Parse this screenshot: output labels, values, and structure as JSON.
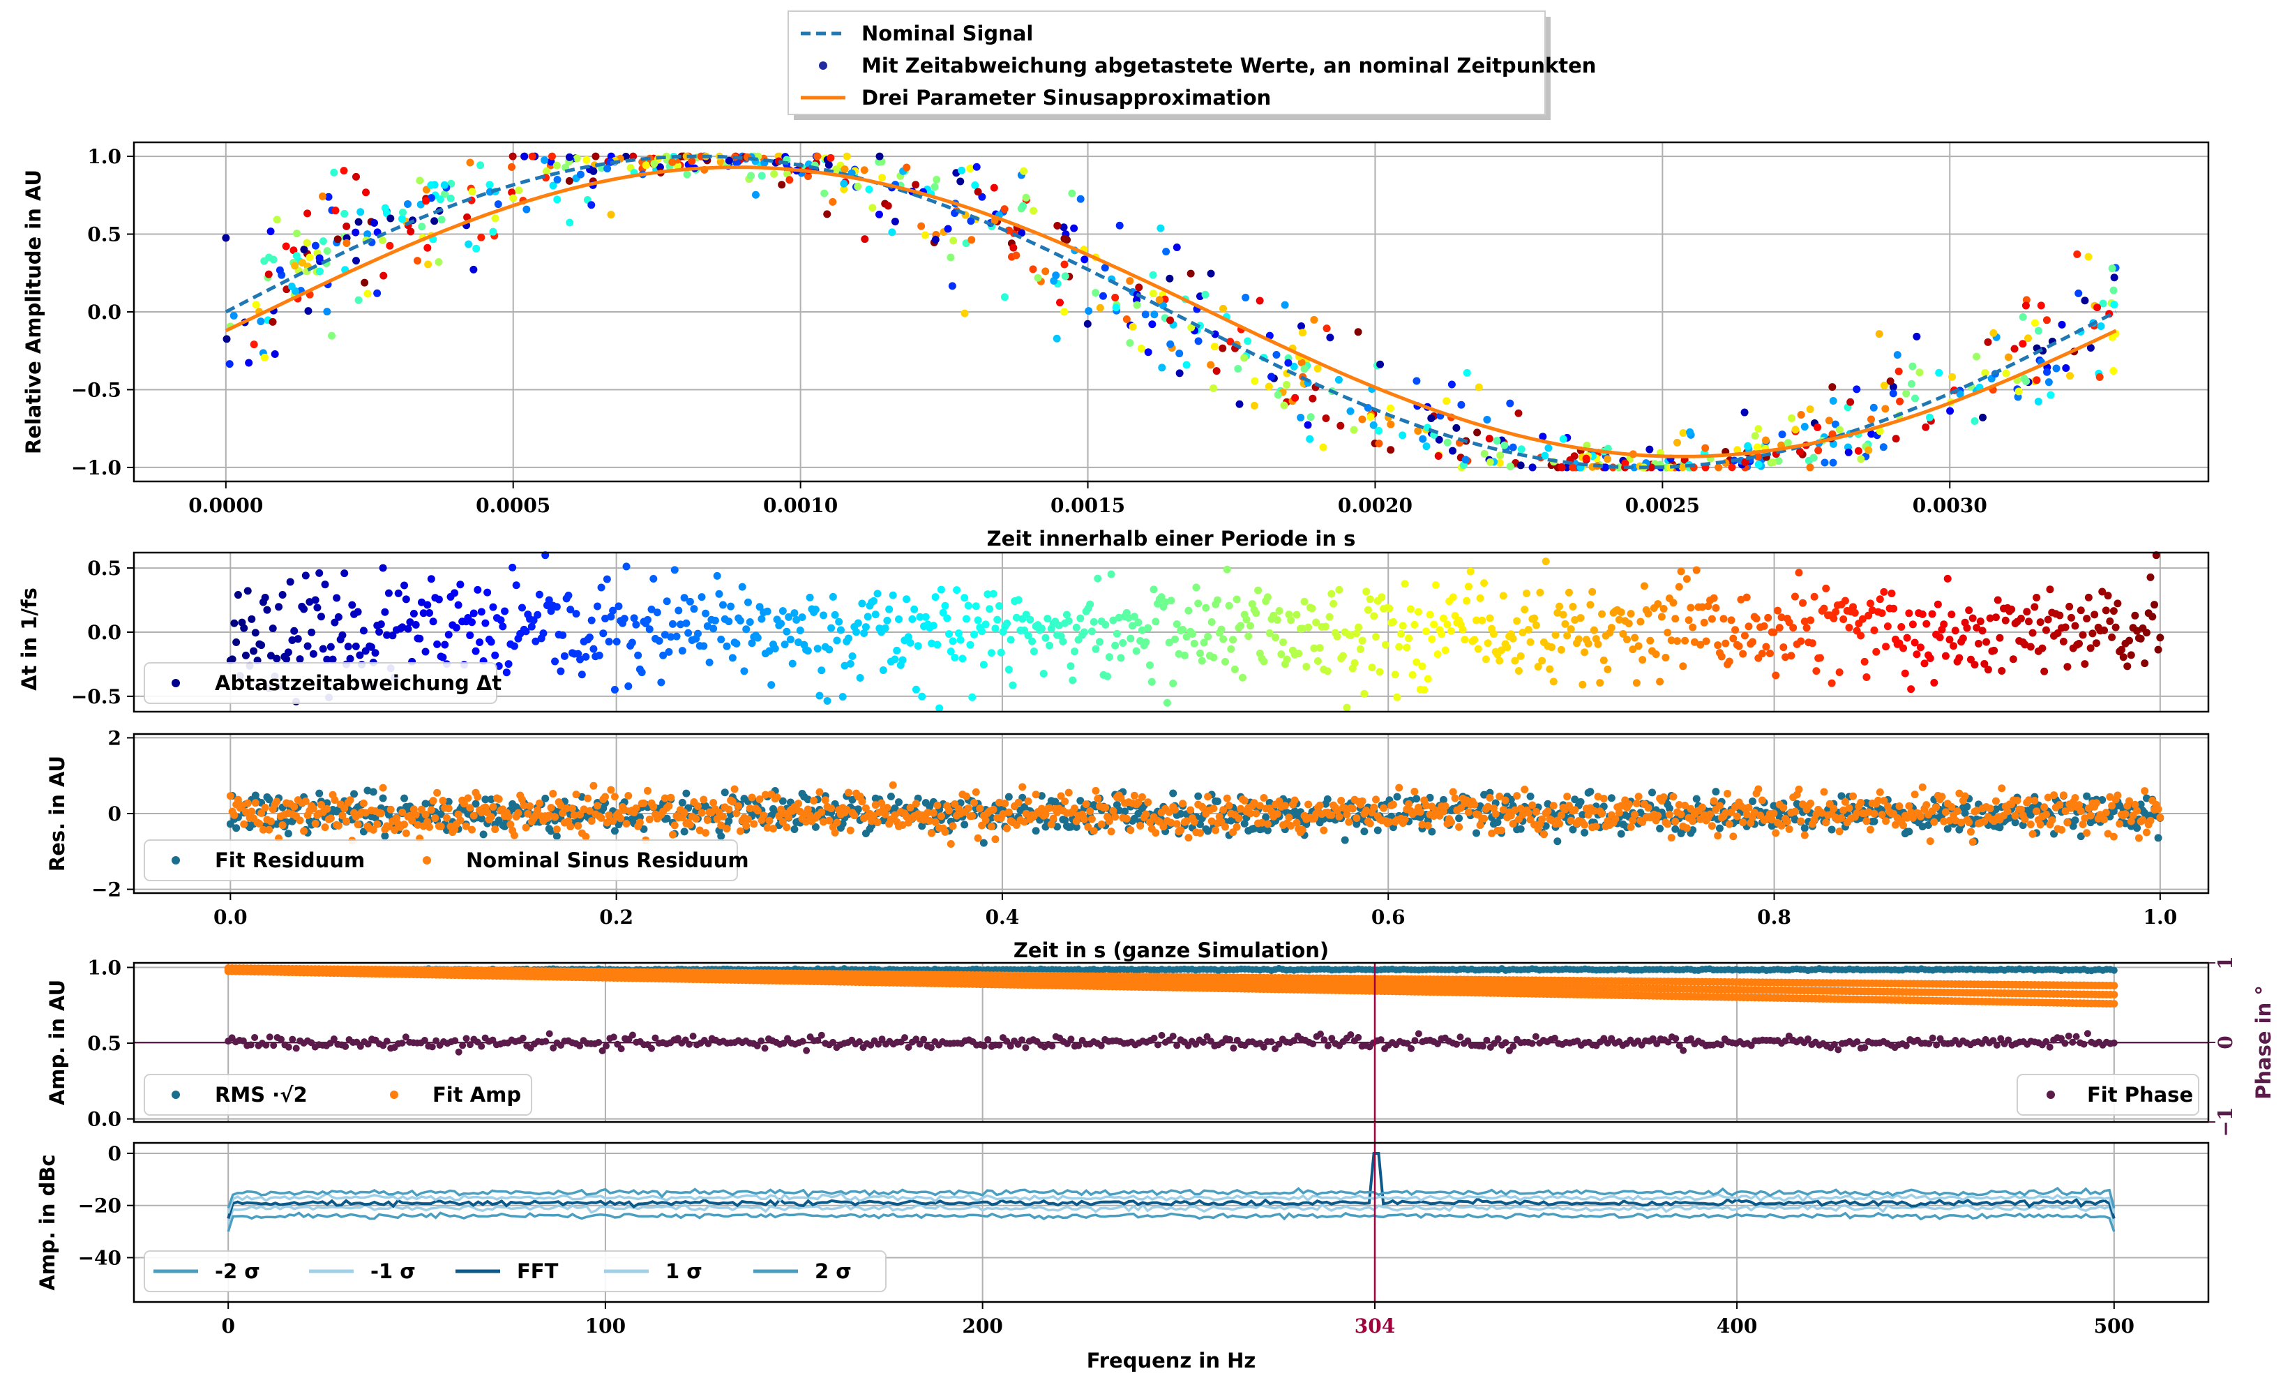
{
  "colors": {
    "nominal": "#1f77b4",
    "dark_blue": "#0d4f8b",
    "orange": "#ff7f0e",
    "fit_residual": "#1a6f8f",
    "phase": "#5a1a4a",
    "marker_line": "#a0003c",
    "fft": "#0c5a8a",
    "sigma1": "#9fd0e8",
    "sigma2": "#4a9ec0"
  },
  "marker_label": "304",
  "chart_data": [
    {
      "type": "scatter",
      "panel": "top",
      "xlabel": "Zeit innerhalb einer Periode in s",
      "ylabel": "Relative Amplitude in AU",
      "xlim": [
        -0.00016,
        0.00345
      ],
      "ylim": [
        -1.09,
        1.09
      ],
      "xticks": [
        0.0,
        0.0005,
        0.001,
        0.0015,
        0.002,
        0.0025,
        0.003
      ],
      "xticklabels": [
        "0.0000",
        "0.0005",
        "0.0010",
        "0.0015",
        "0.0020",
        "0.0025",
        "0.0030"
      ],
      "yticks": [
        -1.0,
        -0.5,
        0.0,
        0.5,
        1.0
      ],
      "yticklabels": [
        "−1.0",
        "−0.5",
        "0.0",
        "0.5",
        "1.0"
      ],
      "grid": true,
      "legend": "above",
      "period": 0.003289,
      "series": [
        {
          "name": "Nominal Signal",
          "kind": "dashed-line",
          "amplitude": 1.0,
          "phase_offset": 0.0
        },
        {
          "name": "Mit Zeitabweichung abgetastete Werte, an nominal Zeitpunkten",
          "kind": "scatter",
          "points": 1000,
          "colormap": "jet"
        },
        {
          "name": "Drei Parameter Sinusapproximation",
          "kind": "line",
          "amplitude": 0.93,
          "phase_offset": -0.13
        }
      ]
    },
    {
      "type": "scatter",
      "panel": "dt",
      "ylabel": "Δt in 1/fs",
      "xlim": [
        -0.05,
        1.025
      ],
      "ylim": [
        -0.62,
        0.62
      ],
      "yticks": [
        -0.5,
        0.0,
        0.5
      ],
      "yticklabels": [
        "−0.5",
        "0.0",
        "0.5"
      ],
      "grid": true,
      "legend": "lower-left",
      "series": [
        {
          "name": "Abtastzeitabweichung Δt",
          "points": 1000,
          "colormap": "jet",
          "std": 0.2
        }
      ]
    },
    {
      "type": "scatter",
      "panel": "residual",
      "xlabel": "Zeit in s (ganze Simulation)",
      "ylabel": "Res. in AU",
      "xlim": [
        -0.05,
        1.025
      ],
      "ylim": [
        -2.1,
        2.1
      ],
      "xticks": [
        0.0,
        0.2,
        0.4,
        0.6,
        0.8,
        1.0
      ],
      "xticklabels": [
        "0.0",
        "0.2",
        "0.4",
        "0.6",
        "0.8",
        "1.0"
      ],
      "yticks": [
        -2,
        0,
        2
      ],
      "yticklabels": [
        "−2",
        "0",
        "2"
      ],
      "grid": true,
      "legend": "lower-left",
      "series": [
        {
          "name": "Fit Residuum",
          "points": 1000,
          "std": 0.25
        },
        {
          "name": "Nominal Sinus Residuum",
          "points": 1000,
          "std": 0.28
        }
      ]
    },
    {
      "type": "scatter",
      "panel": "amplitude",
      "ylabel": "Amp. in AU",
      "ylabel_right": "Phase in °",
      "xlim": [
        -25,
        525
      ],
      "ylim": [
        -0.02,
        1.03
      ],
      "yticks": [
        0.0,
        0.5,
        1.0
      ],
      "yticklabels": [
        "0.0",
        "0.5",
        "1.0"
      ],
      "ylim_right": [
        -1,
        1
      ],
      "yticks_right": [
        -1,
        0,
        1
      ],
      "yticklabels_right": [
        "−1",
        "0",
        "1"
      ],
      "grid": true,
      "legend": [
        "lower-left",
        "lower-right"
      ],
      "series": [
        {
          "name": "RMS ·√2",
          "start": 0.985,
          "end": 0.985
        },
        {
          "name": "Fit Amp",
          "start": 0.985,
          "end": 0.82
        },
        {
          "name": "Fit Phase",
          "axis": "right",
          "value": 0.0
        }
      ]
    },
    {
      "type": "line",
      "panel": "spectrum",
      "xlabel": "Frequenz in Hz",
      "ylabel": "Amp. in dBc",
      "xlim": [
        -25,
        525
      ],
      "ylim": [
        -57,
        4
      ],
      "xticks": [
        0,
        100,
        200,
        304,
        400,
        500
      ],
      "xticklabels": [
        "0",
        "100",
        "200",
        "304",
        "400",
        "500"
      ],
      "yticks": [
        -40,
        -20,
        0
      ],
      "yticklabels": [
        "−40",
        "−20",
        "0"
      ],
      "grid": true,
      "legend": "lower-left",
      "marker_frequency": 304,
      "series": [
        {
          "name": "-2 σ",
          "level": -24
        },
        {
          "name": "-1 σ",
          "level": -21
        },
        {
          "name": "FFT",
          "level": -19,
          "peak_at": 304,
          "peak": 0
        },
        {
          "name": "1 σ",
          "level": -17
        },
        {
          "name": "2 σ",
          "level": -15
        }
      ]
    }
  ]
}
